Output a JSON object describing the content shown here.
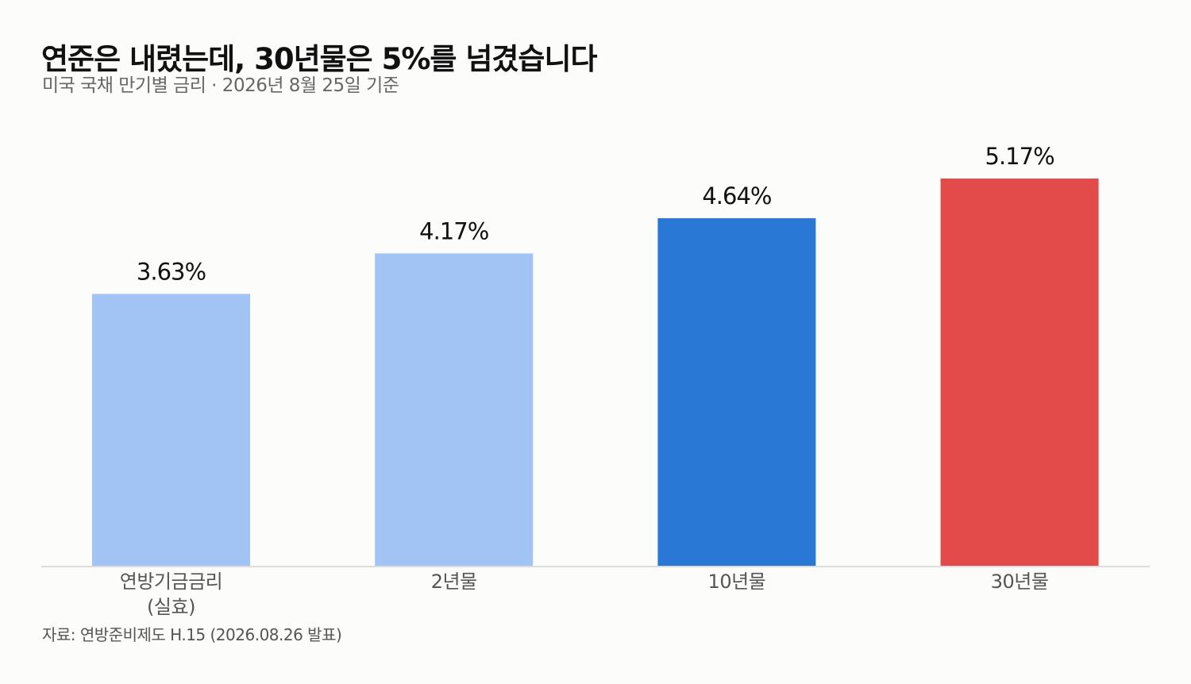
{
  "header": {
    "title": "연준은 내렸는데, 30년물은 5%를 넘겼습니다",
    "subtitle": "미국 국채 만기별 금리 · 2026년 8월 25일 기준"
  },
  "footer": {
    "source": "자료: 연방준비제도 H.15 (2026.08.26 발표)"
  },
  "chart_data": {
    "type": "bar",
    "categories": [
      [
        "연방기금금리",
        "(실효)"
      ],
      [
        "2년물"
      ],
      [
        "10년물"
      ],
      [
        "30년물"
      ]
    ],
    "values": [
      3.63,
      4.17,
      4.64,
      5.17
    ],
    "value_labels": [
      "3.63%",
      "4.17%",
      "4.64%",
      "5.17%"
    ],
    "colors": [
      "#a1c4f4",
      "#a1c4f4",
      "#2a78d6",
      "#e24b4a"
    ],
    "title": "연준은 내렸는데, 30년물은 5%를 넘겼습니다",
    "subtitle": "미국 국채 만기별 금리 · 2026년 8월 25일 기준",
    "xlabel": "",
    "ylabel": "",
    "ylim": [
      0,
      5.5
    ],
    "grid": false,
    "legend": "none"
  }
}
